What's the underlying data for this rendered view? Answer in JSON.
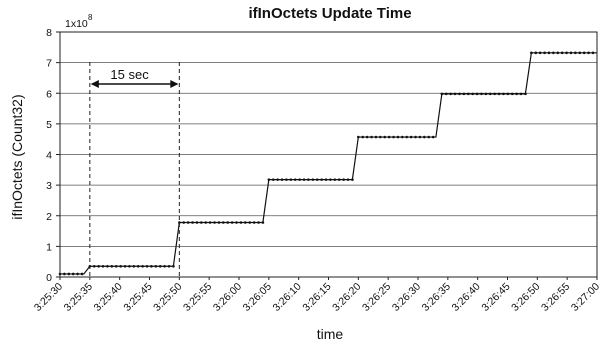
{
  "chart_data": {
    "type": "line",
    "title": "ifInOctets Update Time",
    "xlabel": "time",
    "ylabel": "ifInOctets (Count32)",
    "y_multiplier": "1x10",
    "y_multiplier_exponent": "8",
    "ylim": [
      0,
      8
    ],
    "yticks": [
      "0",
      "1",
      "2",
      "3",
      "4",
      "5",
      "6",
      "7",
      "8"
    ],
    "xlim": [
      "3:25:30",
      "3:27:00"
    ],
    "xticks": [
      "3:25:30",
      "3:25:35",
      "3:25:40",
      "3:25:45",
      "3:25:50",
      "3:25:55",
      "3:26:00",
      "3:26:05",
      "3:26:10",
      "3:26:15",
      "3:26:20",
      "3:26:25",
      "3:26:30",
      "3:26:35",
      "3:26:40",
      "3:26:45",
      "3:26:50",
      "3:26:55",
      "3:27:00"
    ],
    "grid": "horizontal",
    "series": [
      {
        "x": [
          "3:25:30",
          "3:25:34",
          "3:25:35",
          "3:25:49",
          "3:25:50",
          "3:26:04",
          "3:26:05",
          "3:26:19",
          "3:26:20",
          "3:26:33",
          "3:26:34",
          "3:26:48",
          "3:26:49",
          "3:27:00"
        ],
        "values": [
          0.1,
          0.1,
          0.35,
          0.35,
          1.78,
          1.78,
          3.18,
          3.18,
          4.57,
          4.57,
          5.98,
          5.98,
          7.32,
          7.32
        ]
      }
    ],
    "annotation": {
      "text": "15 sec",
      "from": "3:25:35",
      "to": "3:25:50"
    }
  }
}
